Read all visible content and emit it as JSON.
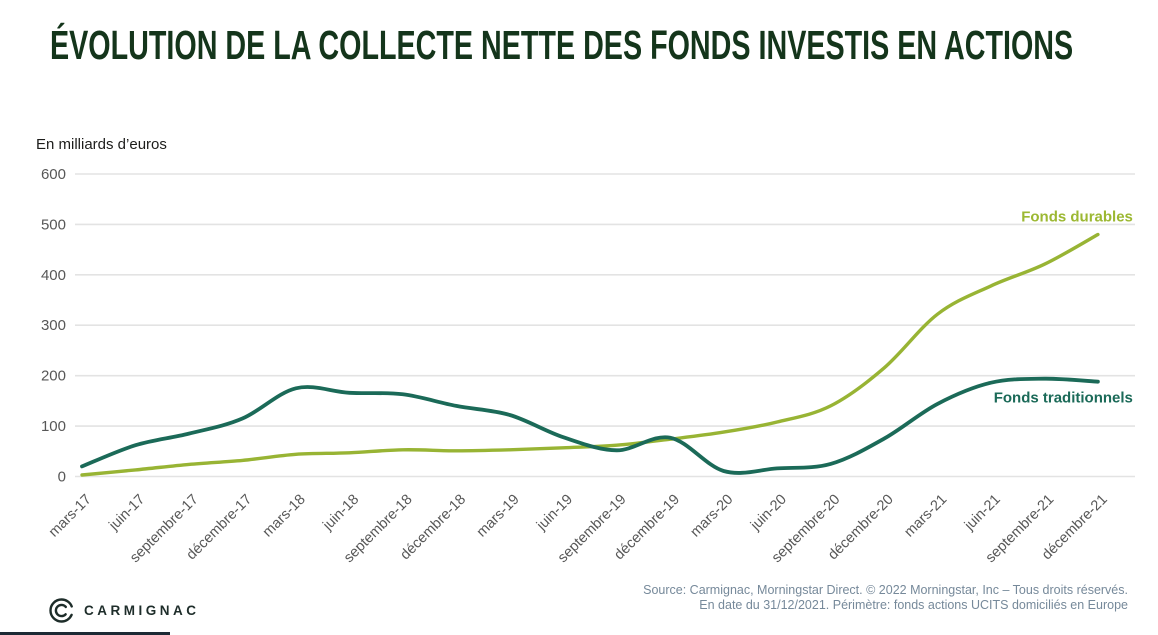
{
  "page": {
    "title": "ÉVOLUTION DE LA COLLECTE NETTE DES FONDS INVESTIS EN ACTIONS",
    "unit_label": "En milliards d’euros"
  },
  "chart_data": {
    "type": "line",
    "title": "Évolution de la collecte nette des fonds investis en actions",
    "ylabel": "En milliards d’euros",
    "xlabel": "",
    "ylim": [
      0,
      600
    ],
    "yticks": [
      0,
      100,
      200,
      300,
      400,
      500,
      600
    ],
    "grid": true,
    "legend_position": "end-of-line-labels",
    "categories": [
      "mars-17",
      "juin-17",
      "septembre-17",
      "décembre-17",
      "mars-18",
      "juin-18",
      "septembre-18",
      "décembre-18",
      "mars-19",
      "juin-19",
      "septembre-19",
      "décembre-19",
      "mars-20",
      "juin-20",
      "septembre-20",
      "décembre-20",
      "mars-21",
      "juin-21",
      "septembre-21",
      "décembre-21"
    ],
    "series": [
      {
        "name": "Fonds durables",
        "color": "#98b434",
        "label_color": "#9cb832",
        "values": [
          3,
          13,
          24,
          32,
          44,
          47,
          53,
          51,
          53,
          57,
          62,
          74,
          88,
          108,
          140,
          215,
          322,
          378,
          421,
          480
        ]
      },
      {
        "name": "Fonds traditionnels",
        "color": "#1b6a58",
        "label_color": "#1b6a58",
        "values": [
          20,
          62,
          85,
          115,
          175,
          166,
          163,
          140,
          122,
          78,
          52,
          77,
          11,
          16,
          25,
          75,
          144,
          186,
          194,
          188
        ]
      }
    ]
  },
  "footer": {
    "source_line1": "Source: Carmignac, Morningstar Direct. © 2022 Morningstar, Inc – Tous droits réservés.",
    "source_line2": "En date du 31/12/2021. Périmètre: fonds actions UCITS domiciliés en Europe",
    "logo_text": "CARMIGNAC"
  },
  "colors": {
    "title": "#14351b",
    "gridline": "#e3e3e3",
    "axis_text": "#575757",
    "source_text": "#76899a"
  }
}
